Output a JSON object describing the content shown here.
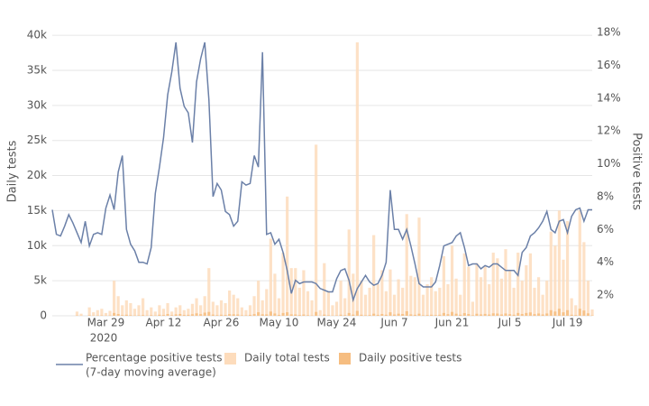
{
  "chart_data": {
    "type": "bar",
    "y_label": "Daily tests",
    "y2_label": "Positive tests",
    "legend_note": "(7-day moving average)",
    "x_year_label": "2020",
    "x": [
      "2020-03-16",
      "2020-03-17",
      "2020-03-18",
      "2020-03-19",
      "2020-03-20",
      "2020-03-21",
      "2020-03-22",
      "2020-03-23",
      "2020-03-24",
      "2020-03-25",
      "2020-03-26",
      "2020-03-27",
      "2020-03-28",
      "2020-03-29",
      "2020-03-30",
      "2020-03-31",
      "2020-04-01",
      "2020-04-02",
      "2020-04-03",
      "2020-04-04",
      "2020-04-05",
      "2020-04-06",
      "2020-04-07",
      "2020-04-08",
      "2020-04-09",
      "2020-04-10",
      "2020-04-11",
      "2020-04-12",
      "2020-04-13",
      "2020-04-14",
      "2020-04-15",
      "2020-04-16",
      "2020-04-17",
      "2020-04-18",
      "2020-04-19",
      "2020-04-20",
      "2020-04-21",
      "2020-04-22",
      "2020-04-23",
      "2020-04-24",
      "2020-04-25",
      "2020-04-26",
      "2020-04-27",
      "2020-04-28",
      "2020-04-29",
      "2020-04-30",
      "2020-05-01",
      "2020-05-02",
      "2020-05-03",
      "2020-05-04",
      "2020-05-05",
      "2020-05-06",
      "2020-05-07",
      "2020-05-08",
      "2020-05-09",
      "2020-05-10",
      "2020-05-11",
      "2020-05-12",
      "2020-05-13",
      "2020-05-14",
      "2020-05-15",
      "2020-05-16",
      "2020-05-17",
      "2020-05-18",
      "2020-05-19",
      "2020-05-20",
      "2020-05-21",
      "2020-05-22",
      "2020-05-23",
      "2020-05-24",
      "2020-05-25",
      "2020-05-26",
      "2020-05-27",
      "2020-05-28",
      "2020-05-29",
      "2020-05-30",
      "2020-05-31",
      "2020-06-01",
      "2020-06-02",
      "2020-06-03",
      "2020-06-04",
      "2020-06-05",
      "2020-06-06",
      "2020-06-07",
      "2020-06-08",
      "2020-06-09",
      "2020-06-10",
      "2020-06-11",
      "2020-06-12",
      "2020-06-13",
      "2020-06-14",
      "2020-06-15",
      "2020-06-16",
      "2020-06-17",
      "2020-06-18",
      "2020-06-19",
      "2020-06-20",
      "2020-06-21",
      "2020-06-22",
      "2020-06-23",
      "2020-06-24",
      "2020-06-25",
      "2020-06-26",
      "2020-06-27",
      "2020-06-28",
      "2020-06-29",
      "2020-06-30",
      "2020-07-01",
      "2020-07-02",
      "2020-07-03",
      "2020-07-04",
      "2020-07-05",
      "2020-07-06",
      "2020-07-07",
      "2020-07-08",
      "2020-07-09",
      "2020-07-10",
      "2020-07-11",
      "2020-07-12",
      "2020-07-13",
      "2020-07-14",
      "2020-07-15",
      "2020-07-16",
      "2020-07-17",
      "2020-07-18",
      "2020-07-19",
      "2020-07-20",
      "2020-07-21",
      "2020-07-22",
      "2020-07-23",
      "2020-07-24",
      "2020-07-25"
    ],
    "xlim": [
      "2020-03-16",
      "2020-07-25"
    ],
    "xticks": [
      {
        "value": "2020-03-29",
        "label": "Mar 29"
      },
      {
        "value": "2020-04-12",
        "label": "Apr 12"
      },
      {
        "value": "2020-04-26",
        "label": "Apr 26"
      },
      {
        "value": "2020-05-10",
        "label": "May 10"
      },
      {
        "value": "2020-05-24",
        "label": "May 24"
      },
      {
        "value": "2020-06-07",
        "label": "Jun 7"
      },
      {
        "value": "2020-06-21",
        "label": "Jun 21"
      },
      {
        "value": "2020-07-05",
        "label": "Jul 5"
      },
      {
        "value": "2020-07-19",
        "label": "Jul 19"
      }
    ],
    "ylim": [
      0,
      40400
    ],
    "yticks": [
      0,
      {
        "value": 5000,
        "label": "5k"
      },
      {
        "value": 10000,
        "label": "10k"
      },
      {
        "value": 15000,
        "label": "15k"
      },
      {
        "value": 20000,
        "label": "20k"
      },
      {
        "value": 25000,
        "label": "25k"
      },
      {
        "value": 30000,
        "label": "30k"
      },
      {
        "value": 35000,
        "label": "35k"
      },
      {
        "value": 40000,
        "label": "40k"
      }
    ],
    "y2lim": [
      0.74,
      18
    ],
    "y2ticks": [
      {
        "value": 2,
        "label": "2%"
      },
      {
        "value": 4,
        "label": "4%"
      },
      {
        "value": 6,
        "label": "6%"
      },
      {
        "value": 8,
        "label": "8%"
      },
      {
        "value": 10,
        "label": "10%"
      },
      {
        "value": 12,
        "label": "12%"
      },
      {
        "value": 14,
        "label": "14%"
      },
      {
        "value": 16,
        "label": "16%"
      },
      {
        "value": 18,
        "label": "18%"
      }
    ],
    "grid": true,
    "series": [
      {
        "name": "Percentage positive tests",
        "type": "line",
        "axis": "y2",
        "color": "#6b80a8",
        "values": [
          7.2,
          5.7,
          5.6,
          6.2,
          6.9,
          6.4,
          5.8,
          5.2,
          6.5,
          5.0,
          5.7,
          5.8,
          5.7,
          7.3,
          8.1,
          7.2,
          9.5,
          10.5,
          6.0,
          5.1,
          4.7,
          4.0,
          4.0,
          3.9,
          4.9,
          8.2,
          9.8,
          11.6,
          14.2,
          15.6,
          17.4,
          14.6,
          13.5,
          13.1,
          11.3,
          15.0,
          16.4,
          17.4,
          13.9,
          8.0,
          8.8,
          8.4,
          7.1,
          6.9,
          6.2,
          6.5,
          8.9,
          8.7,
          8.8,
          10.5,
          9.8,
          16.8,
          5.7,
          5.8,
          5.1,
          5.4,
          4.6,
          3.5,
          2.1,
          2.9,
          2.7,
          2.8,
          2.8,
          2.8,
          2.7,
          2.4,
          2.3,
          2.2,
          2.2,
          3.0,
          3.5,
          3.6,
          2.9,
          1.7,
          2.4,
          2.8,
          3.2,
          2.8,
          2.6,
          2.7,
          3.2,
          4.0,
          8.4,
          6.0,
          6.0,
          5.4,
          6.0,
          5.0,
          3.9,
          2.7,
          2.5,
          2.5,
          2.5,
          2.8,
          3.8,
          5.0,
          5.1,
          5.2,
          5.6,
          5.8,
          4.9,
          3.8,
          3.9,
          3.9,
          3.6,
          3.8,
          3.7,
          3.9,
          3.9,
          3.7,
          3.5,
          3.5,
          3.5,
          3.2,
          4.6,
          4.9,
          5.6,
          5.8,
          6.1,
          6.5,
          7.1,
          6.0,
          5.8,
          6.5,
          6.6,
          5.8,
          6.8,
          7.2,
          7.3,
          6.5,
          7.2,
          7.2
        ]
      },
      {
        "name": "Daily total tests",
        "type": "bar",
        "color": "#fddcbc",
        "values": [
          0,
          0,
          0,
          0,
          0,
          0,
          600,
          300,
          0,
          1200,
          500,
          800,
          1000,
          400,
          700,
          5000,
          2800,
          1500,
          2200,
          1800,
          1000,
          1500,
          2500,
          800,
          1200,
          600,
          1500,
          1000,
          1800,
          600,
          1200,
          1500,
          800,
          1000,
          1700,
          2500,
          1500,
          2800,
          6800,
          2000,
          1500,
          2200,
          1800,
          3600,
          3000,
          2500,
          1200,
          800,
          1500,
          2800,
          5000,
          2200,
          3800,
          11000,
          6000,
          2500,
          9000,
          17000,
          6800,
          6800,
          4000,
          6500,
          3500,
          2200,
          24400,
          800,
          7500,
          3500,
          1500,
          2000,
          5000,
          2500,
          12300,
          6000,
          39000,
          5000,
          3000,
          4000,
          11500,
          4500,
          6500,
          3500,
          6600,
          3000,
          5200,
          4000,
          14500,
          5700,
          5500,
          14000,
          3000,
          4500,
          5500,
          3500,
          4000,
          8500,
          4500,
          10000,
          5300,
          3000,
          8900,
          7000,
          2000,
          7500,
          5500,
          7000,
          4500,
          9000,
          8200,
          5300,
          9500,
          6500,
          4000,
          9000,
          5000,
          7200,
          8900,
          4000,
          5500,
          3000,
          5000,
          12000,
          10000,
          15000,
          8000,
          13500,
          2500,
          1500,
          15000,
          10500,
          5000,
          900
        ]
      },
      {
        "name": "Daily positive tests",
        "type": "bar",
        "color": "#f6bd80",
        "values": [
          0,
          0,
          0,
          0,
          0,
          0,
          40,
          20,
          0,
          70,
          30,
          50,
          60,
          30,
          50,
          400,
          250,
          100,
          150,
          90,
          50,
          70,
          100,
          40,
          90,
          50,
          150,
          110,
          250,
          90,
          200,
          260,
          120,
          140,
          220,
          350,
          230,
          450,
          550,
          170,
          100,
          150,
          120,
          230,
          210,
          190,
          80,
          70,
          130,
          240,
          500,
          210,
          200,
          600,
          330,
          130,
          400,
          500,
          200,
          190,
          110,
          180,
          90,
          50,
          550,
          20,
          170,
          80,
          40,
          60,
          150,
          90,
          400,
          170,
          700,
          150,
          80,
          110,
          300,
          140,
          250,
          150,
          500,
          180,
          300,
          250,
          650,
          200,
          140,
          300,
          80,
          110,
          150,
          100,
          150,
          400,
          230,
          550,
          300,
          150,
          380,
          250,
          80,
          290,
          200,
          270,
          180,
          350,
          320,
          190,
          330,
          230,
          150,
          400,
          250,
          400,
          480,
          240,
          330,
          190,
          330,
          800,
          600,
          1000,
          500,
          800,
          150,
          100,
          1000,
          750,
          350,
          60
        ]
      }
    ]
  }
}
